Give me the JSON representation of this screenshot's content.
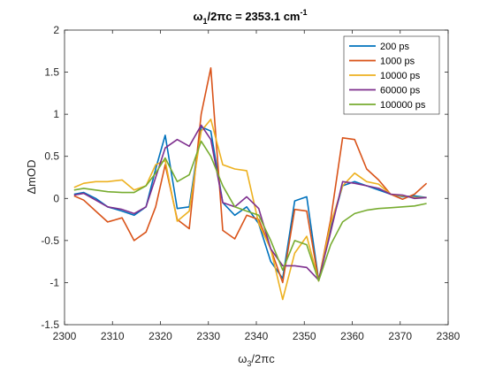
{
  "chart_data": {
    "type": "line",
    "title": {
      "prefix": "ω",
      "prefix_sub": "1",
      "main": "/2πc = 2353.1 cm",
      "sup": "-1"
    },
    "xlabel": {
      "prefix": "ω",
      "sub": "3",
      "suffix": "/2πc"
    },
    "ylabel": "ΔmOD",
    "xlim": [
      2300,
      2380
    ],
    "ylim": [
      -1.5,
      2
    ],
    "xticks": [
      2300,
      2310,
      2320,
      2330,
      2340,
      2350,
      2360,
      2370,
      2380
    ],
    "xtick_labels": [
      "2300",
      "2310",
      "2320",
      "2330",
      "2340",
      "2350",
      "2360",
      "2370",
      "2380"
    ],
    "yticks": [
      -1.5,
      -1,
      -0.5,
      0,
      0.5,
      1,
      1.5,
      2
    ],
    "ytick_labels": [
      "-1.5",
      "-1",
      "-0.5",
      "0",
      "0.5",
      "1",
      "1.5",
      "2"
    ],
    "grid": false,
    "legend_position": "top-right",
    "x": [
      2302,
      2304,
      2306.5,
      2309,
      2312,
      2314.5,
      2317,
      2319,
      2321,
      2323.5,
      2326,
      2328.5,
      2330.5,
      2333,
      2335.5,
      2338,
      2340.5,
      2343,
      2345.5,
      2348,
      2350.5,
      2353,
      2355.5,
      2358,
      2360.5,
      2363,
      2365.5,
      2368,
      2370.5,
      2373,
      2375.5
    ],
    "series": [
      {
        "name": "200 ps",
        "color": "#0072BD",
        "values": [
          0.05,
          0.07,
          0.0,
          -0.1,
          -0.15,
          -0.2,
          -0.1,
          0.35,
          0.75,
          -0.12,
          -0.1,
          0.85,
          0.8,
          -0.05,
          -0.2,
          -0.1,
          -0.3,
          -0.75,
          -0.95,
          -0.03,
          0.02,
          -0.97,
          -0.35,
          0.15,
          0.2,
          0.15,
          0.1,
          0.05,
          0.02,
          0.03,
          0.01
        ]
      },
      {
        "name": "1000 ps",
        "color": "#D95319",
        "values": [
          0.03,
          -0.02,
          -0.15,
          -0.28,
          -0.23,
          -0.5,
          -0.4,
          -0.1,
          0.4,
          -0.25,
          -0.36,
          1.0,
          1.55,
          -0.38,
          -0.48,
          -0.2,
          -0.25,
          -0.6,
          -1.0,
          -0.13,
          -0.15,
          -0.98,
          -0.25,
          0.72,
          0.7,
          0.35,
          0.22,
          0.05,
          -0.01,
          0.05,
          0.18
        ]
      },
      {
        "name": "10000 ps",
        "color": "#EDB120",
        "values": [
          0.13,
          0.18,
          0.2,
          0.2,
          0.22,
          0.1,
          0.15,
          0.4,
          0.45,
          -0.27,
          -0.15,
          0.8,
          0.94,
          0.4,
          0.35,
          0.33,
          -0.3,
          -0.6,
          -1.2,
          -0.65,
          -0.45,
          -0.98,
          -0.3,
          0.15,
          0.3,
          0.2,
          0.17,
          0.05,
          0.03,
          0.01,
          0.01
        ]
      },
      {
        "name": "60000 ps",
        "color": "#7E2F8E",
        "values": [
          0.04,
          0.06,
          -0.02,
          -0.1,
          -0.13,
          -0.18,
          -0.1,
          0.25,
          0.6,
          0.7,
          0.62,
          0.87,
          0.7,
          -0.05,
          -0.1,
          0.02,
          -0.12,
          -0.6,
          -0.8,
          -0.8,
          -0.82,
          -0.97,
          -0.4,
          0.2,
          0.18,
          0.15,
          0.12,
          0.05,
          0.04,
          0.0,
          0.01
        ]
      },
      {
        "name": "100000 ps",
        "color": "#77AC30",
        "values": [
          0.1,
          0.12,
          0.1,
          0.08,
          0.07,
          0.07,
          0.15,
          0.3,
          0.48,
          0.2,
          0.28,
          0.68,
          0.5,
          0.15,
          -0.1,
          -0.15,
          -0.2,
          -0.5,
          -0.85,
          -0.5,
          -0.55,
          -0.98,
          -0.55,
          -0.28,
          -0.18,
          -0.14,
          -0.12,
          -0.11,
          -0.1,
          -0.09,
          -0.06
        ]
      }
    ]
  }
}
